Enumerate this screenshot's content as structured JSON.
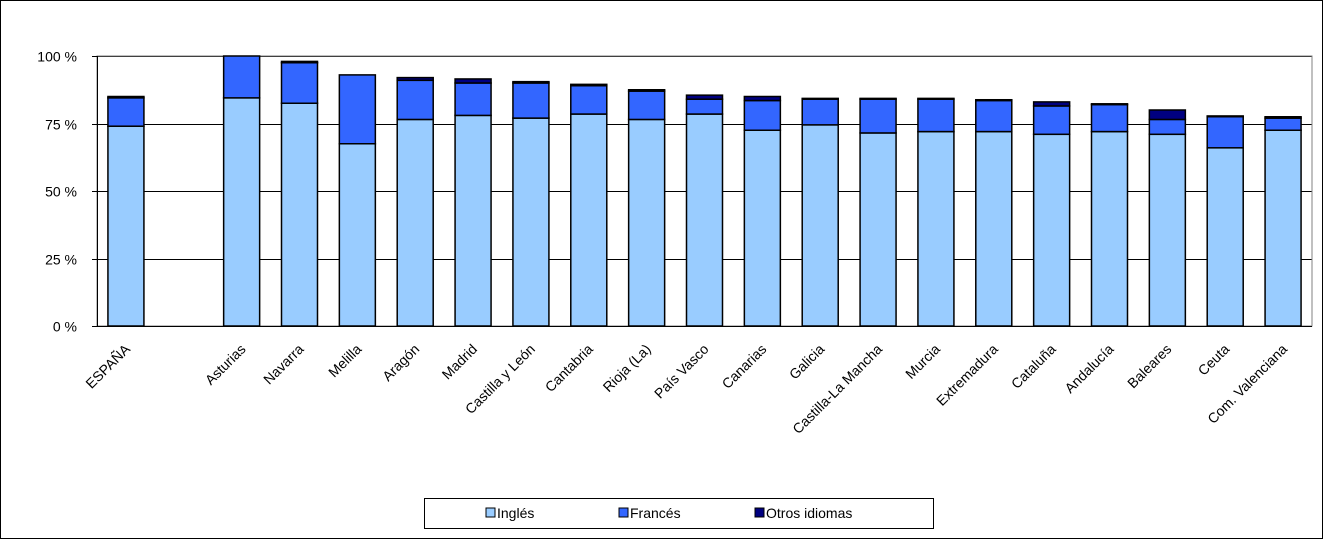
{
  "chart_data": {
    "type": "bar",
    "stacked": true,
    "categories": [
      "ESPAÑA",
      "",
      "Asturias",
      "Navarra",
      "Melilla",
      "Aragón",
      "Madrid",
      "Castilla y León",
      "Cantabria",
      "Rioja (La)",
      "País Vasco",
      "Canarias",
      "Galicia",
      "Castilla-La Mancha",
      "Murcia",
      "Extremadura",
      "Cataluña",
      "Andalucía",
      "Baleares",
      "Ceuta",
      "Com. Valenciana"
    ],
    "series": [
      {
        "name": "Inglés",
        "color": "#99CCFF",
        "values": [
          74,
          null,
          84.5,
          82.5,
          67.5,
          76.5,
          78,
          77,
          78.5,
          76.5,
          78.5,
          72.5,
          74.5,
          71.5,
          72,
          72,
          71,
          72,
          71,
          66,
          72.5
        ]
      },
      {
        "name": "Francés",
        "color": "#3366FF",
        "values": [
          10.5,
          null,
          15.5,
          15,
          25.5,
          14.5,
          12,
          13,
          10.5,
          10.5,
          5.5,
          11,
          9.5,
          12.5,
          12,
          11.5,
          10.5,
          10,
          5.5,
          11.5,
          4.5
        ]
      },
      {
        "name": "Otros idiomas",
        "color": "#000080",
        "values": [
          0.5,
          null,
          0,
          0.5,
          0,
          1,
          1.5,
          0.5,
          0.5,
          0.5,
          1.5,
          1.5,
          0.3,
          0.3,
          0.3,
          0.3,
          1.5,
          0.3,
          3.5,
          0.3,
          0.5
        ]
      }
    ],
    "yaxis": {
      "min": 0,
      "max": 100,
      "ticks": [
        0,
        25,
        50,
        75,
        100
      ],
      "tick_labels": [
        "0 %",
        "25 %",
        "50 %",
        "75 %",
        "100 %"
      ]
    },
    "grid": true,
    "plot_background": "#FFFFFF",
    "legend": {
      "position": "bottom",
      "entries": [
        "Inglés",
        "Francés",
        "Otros idiomas"
      ]
    }
  }
}
